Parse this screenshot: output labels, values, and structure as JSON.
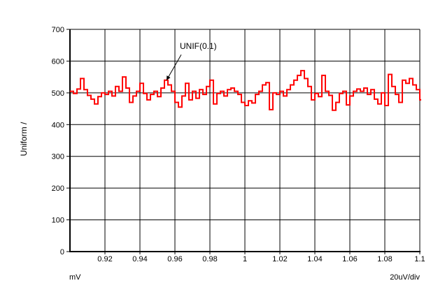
{
  "page": {
    "background": "#FFFFFF"
  },
  "chart_data": {
    "type": "line",
    "style": "sample-hold step noise trace (Probe histogram style)",
    "title": "",
    "xlabel": "mV",
    "x_div_label": "20uV/div",
    "ylabel": "Uniform /",
    "x_range": [
      0.9,
      1.1
    ],
    "y_range": [
      0,
      700
    ],
    "grid": "solid black lines; x every 0.02 mV (20uV per division), y every 100",
    "legend": "none",
    "x_ticks": {
      "values": [
        0.92,
        0.94,
        0.96,
        0.98,
        1.0,
        1.02,
        1.04,
        1.06,
        1.08,
        1.1
      ],
      "labels": [
        "0.92",
        "0.94",
        "0.96",
        "0.98",
        "1",
        "1.02",
        "1.04",
        "1.06",
        "1.08",
        "1.1"
      ]
    },
    "y_ticks": {
      "values": [
        0,
        100,
        200,
        300,
        400,
        500,
        600,
        700
      ],
      "labels": [
        "0",
        "100",
        "200",
        "300",
        "400",
        "500",
        "600",
        "700"
      ]
    },
    "colors": {
      "trace": "#FF0000",
      "grid": "#000000",
      "axis": "#000000",
      "text": "#000000",
      "background": "#FFFFFF"
    },
    "series": [
      {
        "name": "UNIF(0.1)",
        "color": "#FF0000",
        "x_start": 0.9,
        "x_step": 0.002,
        "values": [
          505,
          498,
          512,
          545,
          510,
          492,
          480,
          465,
          488,
          500,
          495,
          505,
          490,
          520,
          505,
          550,
          515,
          470,
          490,
          505,
          530,
          498,
          478,
          495,
          505,
          488,
          515,
          540,
          525,
          505,
          470,
          455,
          490,
          530,
          478,
          505,
          483,
          510,
          495,
          520,
          540,
          465,
          498,
          505,
          490,
          510,
          515,
          505,
          495,
          470,
          460,
          475,
          468,
          495,
          505,
          525,
          532,
          447,
          500,
          495,
          505,
          490,
          510,
          525,
          540,
          555,
          570,
          545,
          520,
          478,
          498,
          488,
          555,
          505,
          492,
          445,
          470,
          498,
          505,
          462,
          490,
          505,
          512,
          505,
          515,
          495,
          510,
          480,
          465,
          500,
          460,
          558,
          520,
          495,
          470,
          540,
          530,
          545,
          525,
          510,
          478
        ]
      }
    ],
    "annotation": {
      "text": "UNIF(0.1)",
      "line_from_x": 0.9636,
      "line_from_y": 620,
      "arrow_to_x": 0.9552,
      "arrow_to_y": 540
    }
  }
}
